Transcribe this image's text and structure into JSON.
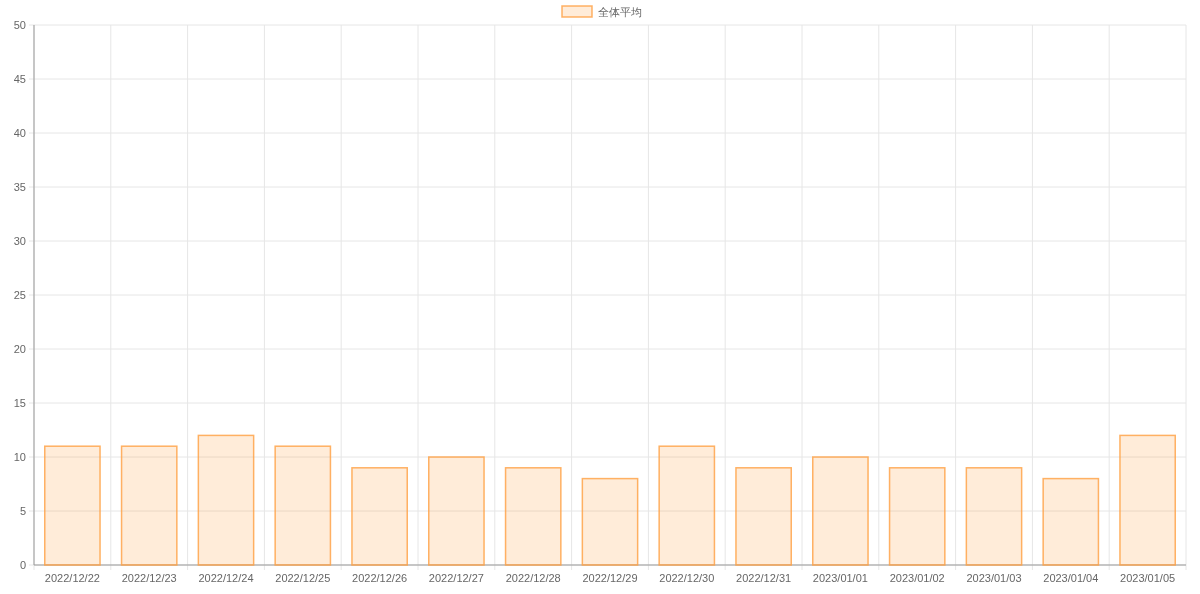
{
  "chart_data": {
    "type": "bar",
    "categories": [
      "2022/12/22",
      "2022/12/23",
      "2022/12/24",
      "2022/12/25",
      "2022/12/26",
      "2022/12/27",
      "2022/12/28",
      "2022/12/29",
      "2022/12/30",
      "2022/12/31",
      "2023/01/01",
      "2023/01/02",
      "2023/01/03",
      "2023/01/04",
      "2023/01/05"
    ],
    "series": [
      {
        "name": "全体平均",
        "color": "#ff9f40",
        "values": [
          11,
          11,
          12,
          11,
          9,
          10,
          9,
          8,
          11,
          9,
          10,
          9,
          9,
          8,
          12
        ]
      }
    ],
    "ylim": [
      0,
      50
    ],
    "yticks": [
      0,
      5,
      10,
      15,
      20,
      25,
      30,
      35,
      40,
      45,
      50
    ],
    "grid": true,
    "legend": "top"
  }
}
